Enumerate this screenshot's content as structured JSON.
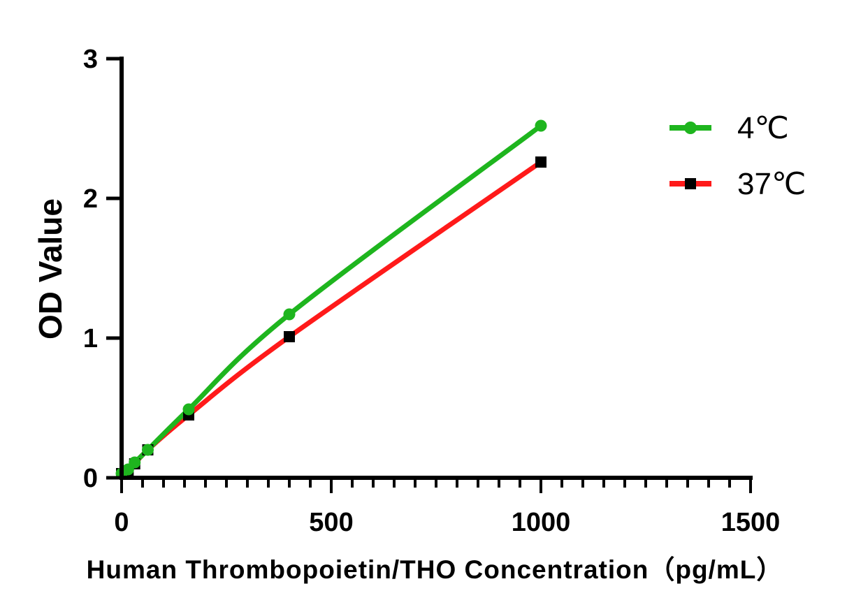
{
  "chart_data": {
    "type": "line",
    "xlabel": "Human Thrombopoietin/THO Concentration（pg/mL）",
    "ylabel": "OD Value",
    "xlim": [
      0,
      1500
    ],
    "ylim": [
      0,
      3
    ],
    "x_ticks": [
      "0",
      "500",
      "1000",
      "1500"
    ],
    "y_ticks": [
      "0",
      "1",
      "2",
      "3"
    ],
    "legend_position": "top-right",
    "series": [
      {
        "name": "4℃",
        "color": "#1eb51e",
        "marker": "circle",
        "x": [
          0,
          15.6,
          31.25,
          62.5,
          160,
          400,
          1000
        ],
        "y": [
          0.03,
          0.06,
          0.11,
          0.2,
          0.49,
          1.17,
          2.52
        ]
      },
      {
        "name": "37℃",
        "color": "#ff1a1a",
        "marker": "square",
        "x": [
          0,
          15.6,
          31.25,
          62.5,
          160,
          400,
          1000
        ],
        "y": [
          0.03,
          0.05,
          0.1,
          0.2,
          0.45,
          1.01,
          2.26
        ]
      }
    ]
  }
}
